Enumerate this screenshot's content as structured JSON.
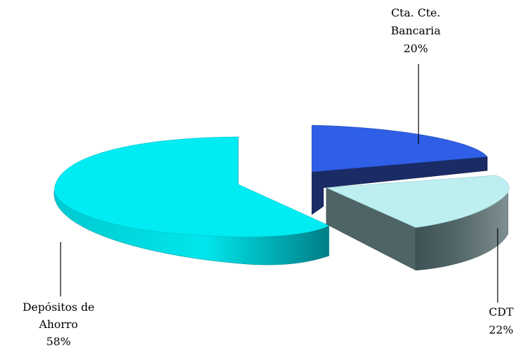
{
  "chart_data": {
    "type": "pie",
    "title": "",
    "style": "3d-exploded",
    "slices": [
      {
        "label_lines": [
          "Cta. Cte.",
          "Bancaria"
        ],
        "percent_text": "20%",
        "value": 20,
        "top_color": "#2f5fe6",
        "side_color": "#1a2b66"
      },
      {
        "label_lines": [
          "CDT"
        ],
        "percent_text": "22%",
        "value": 22,
        "top_color": "#bdeef0",
        "side_color": "#4f6466"
      },
      {
        "label_lines": [
          "Depósitos de",
          "Ahorro"
        ],
        "percent_text": "58%",
        "value": 58,
        "top_color": "#00e8ee",
        "side_color": "#00a6b0"
      }
    ],
    "legend": "none",
    "labels": "outside-with-leader-lines"
  }
}
